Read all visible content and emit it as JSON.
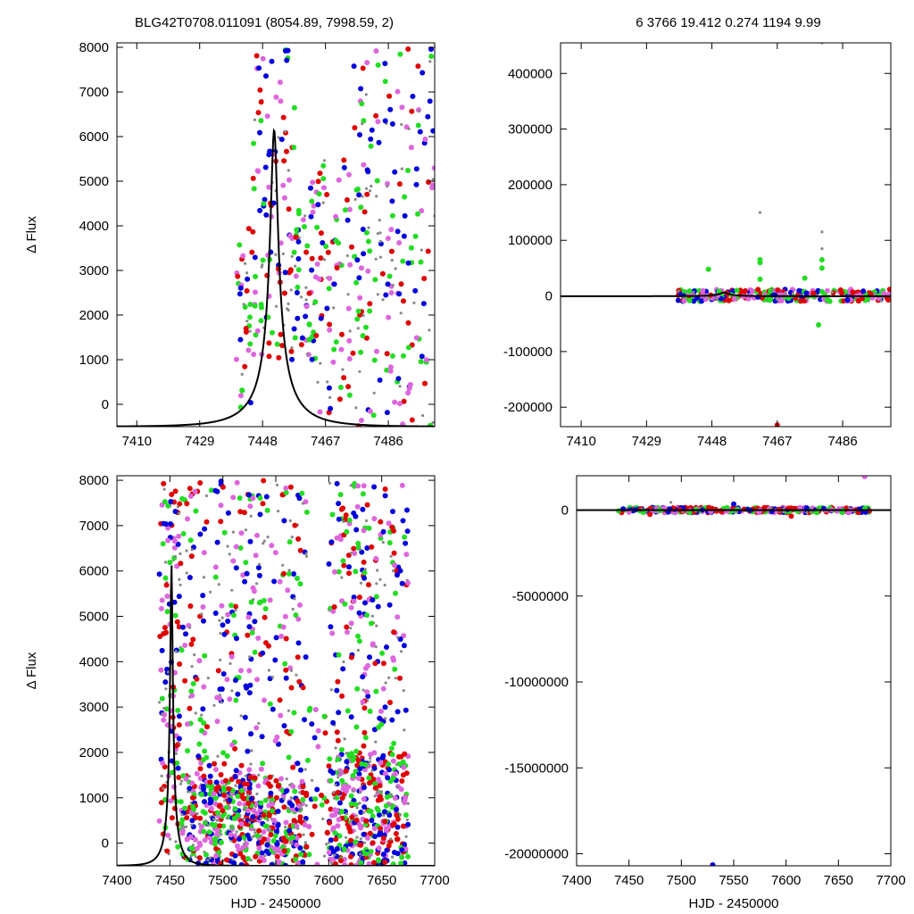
{
  "header": {
    "left": "BLG42T0708.011091 (8054.89, 7998.59,    2)",
    "right": "6   3766   19.412   0.274   1194   9.99"
  },
  "colors": {
    "red": "#e00000",
    "green": "#22dd22",
    "blue": "#0000dd",
    "magenta": "#dd66dd",
    "gray": "#888888",
    "model": "#000000"
  },
  "model": {
    "type": "single-peak microlensing curve",
    "peak_hjd": 7451.5,
    "peak_flux": 6150,
    "baseline_flux": -500,
    "color": "model"
  },
  "chart_data": [
    {
      "id": "top-left",
      "type": "scatter",
      "title": "",
      "xlabel": "",
      "ylabel": "Δ Flux",
      "xlim": [
        7404,
        7500
      ],
      "ylim": [
        -500,
        8100
      ],
      "xticks": [
        7410,
        7429,
        7448,
        7467,
        7486
      ],
      "yticks": [
        0,
        1000,
        2000,
        3000,
        4000,
        5000,
        6000,
        7000,
        8000
      ],
      "grid": false,
      "series_colors": [
        "red",
        "green",
        "blue",
        "magenta",
        "gray"
      ],
      "scatter_summary": "dense points scattered around the model peak near 7451 and in the tail 7470–7500",
      "clusters": [
        {
          "x_range": [
            7440,
            7445
          ],
          "y_range": [
            -300,
            4000
          ],
          "count": 35
        },
        {
          "x_range": [
            7445,
            7458
          ],
          "y_range": [
            1000,
            8000
          ],
          "count": 120
        },
        {
          "x_range": [
            7458,
            7464
          ],
          "y_range": [
            1000,
            5000
          ],
          "count": 50
        },
        {
          "x_range": [
            7464,
            7475
          ],
          "y_range": [
            -300,
            5500
          ],
          "count": 80
        },
        {
          "x_range": [
            7475,
            7500
          ],
          "y_range": [
            -500,
            8000
          ],
          "count": 200
        }
      ]
    },
    {
      "id": "top-right",
      "type": "scatter",
      "title": "",
      "xlabel": "",
      "ylabel": "",
      "xlim": [
        7404,
        7500
      ],
      "ylim": [
        -235000,
        455000
      ],
      "xticks": [
        7410,
        7429,
        7448,
        7467,
        7486
      ],
      "yticks": [
        -200000,
        -100000,
        0,
        100000,
        200000,
        300000,
        400000
      ],
      "grid": false,
      "series_colors": [
        "red",
        "green",
        "blue",
        "magenta",
        "gray"
      ],
      "scatter_summary": "points hug zero between 7438 and 7500 with a few outliers",
      "clusters": [
        {
          "x_range": [
            7438,
            7500
          ],
          "y_range": [
            -10000,
            12000
          ],
          "count": 300
        }
      ],
      "outliers": [
        {
          "x": 7462,
          "y": 150000,
          "color": "gray"
        },
        {
          "x": 7462,
          "y": 65000,
          "color": "green"
        },
        {
          "x": 7462,
          "y": 60000,
          "color": "green"
        },
        {
          "x": 7462,
          "y": 30000,
          "color": "green"
        },
        {
          "x": 7480,
          "y": 115000,
          "color": "gray"
        },
        {
          "x": 7480,
          "y": 85000,
          "color": "gray"
        },
        {
          "x": 7480,
          "y": 65000,
          "color": "green"
        },
        {
          "x": 7480,
          "y": 50000,
          "color": "green"
        },
        {
          "x": 7447,
          "y": 48000,
          "color": "green"
        },
        {
          "x": 7475,
          "y": 32000,
          "color": "green"
        },
        {
          "x": 7479,
          "y": -52000,
          "color": "green"
        },
        {
          "x": 7467,
          "y": -232000,
          "color": "red"
        },
        {
          "x": 7480,
          "y": 455000,
          "color": "gray"
        }
      ]
    },
    {
      "id": "bottom-left",
      "type": "scatter",
      "title": "",
      "xlabel": "HJD - 2450000",
      "ylabel": "Δ Flux",
      "xlim": [
        7400,
        7700
      ],
      "ylim": [
        -500,
        8100
      ],
      "xticks": [
        7400,
        7450,
        7500,
        7550,
        7600,
        7650,
        7700
      ],
      "yticks": [
        0,
        1000,
        2000,
        3000,
        4000,
        5000,
        6000,
        7000,
        8000
      ],
      "grid": false,
      "series_colors": [
        "red",
        "green",
        "blue",
        "magenta",
        "gray"
      ],
      "scatter_summary": "full season 7440–7675, dense below 1500 with scattered points up to 8000",
      "clusters": [
        {
          "x_range": [
            7440,
            7460
          ],
          "y_range": [
            -300,
            8000
          ],
          "count": 140
        },
        {
          "x_range": [
            7460,
            7580
          ],
          "y_range": [
            -500,
            1500
          ],
          "count": 600
        },
        {
          "x_range": [
            7460,
            7580
          ],
          "y_range": [
            1500,
            8000
          ],
          "count": 320
        },
        {
          "x_range": [
            7580,
            7600
          ],
          "y_range": [
            -500,
            3000
          ],
          "count": 30
        },
        {
          "x_range": [
            7600,
            7675
          ],
          "y_range": [
            -500,
            2000
          ],
          "count": 420
        },
        {
          "x_range": [
            7600,
            7675
          ],
          "y_range": [
            2000,
            8000
          ],
          "count": 230
        }
      ]
    },
    {
      "id": "bottom-right",
      "type": "scatter",
      "title": "",
      "xlabel": "HJD - 2450000",
      "ylabel": "",
      "xlim": [
        7400,
        7700
      ],
      "ylim": [
        -20700000,
        2000000
      ],
      "xticks": [
        7400,
        7450,
        7500,
        7550,
        7600,
        7650,
        7700
      ],
      "yticks": [
        -20000000,
        -15000000,
        -10000000,
        -5000000,
        0
      ],
      "grid": false,
      "series_colors": [
        "red",
        "green",
        "blue",
        "magenta",
        "gray"
      ],
      "scatter_summary": "points hug zero across 7440–7680 with one extreme outlier",
      "clusters": [
        {
          "x_range": [
            7440,
            7680
          ],
          "y_range": [
            -150000,
            150000
          ],
          "count": 400
        }
      ],
      "outliers": [
        {
          "x": 7530,
          "y": -20650000,
          "color": "blue"
        },
        {
          "x": 7675,
          "y": 1950000,
          "color": "magenta"
        },
        {
          "x": 7470,
          "y": -250000,
          "color": "red"
        },
        {
          "x": 7605,
          "y": -350000,
          "color": "red"
        },
        {
          "x": 7550,
          "y": 350000,
          "color": "blue"
        },
        {
          "x": 7490,
          "y": 450000,
          "color": "gray"
        }
      ]
    }
  ]
}
